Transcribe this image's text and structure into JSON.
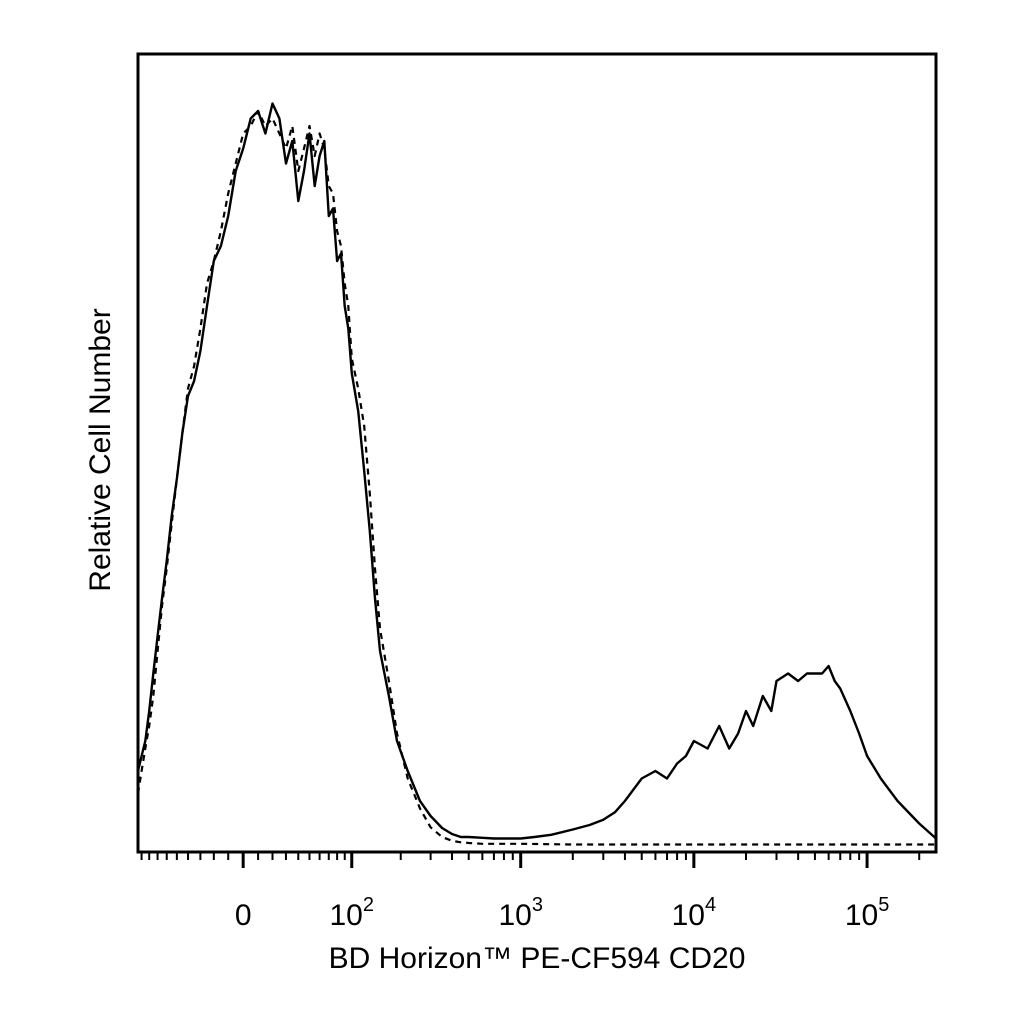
{
  "chart_data": {
    "type": "line",
    "title": "",
    "xlabel": "BD Horizon™ PE-CF594 CD20",
    "ylabel": "Relative Cell Number",
    "x_scale": "biexponential",
    "xlim": [
      -95,
      250000
    ],
    "ylim": [
      0,
      100
    ],
    "grid": false,
    "legend": "none",
    "x_ticks": [
      {
        "value": 0,
        "base": "0",
        "exp": ""
      },
      {
        "value": 100,
        "base": "10",
        "exp": "2"
      },
      {
        "value": 1000,
        "base": "10",
        "exp": "3"
      },
      {
        "value": 10000,
        "base": "10",
        "exp": "4"
      },
      {
        "value": 100000,
        "base": "10",
        "exp": "5"
      }
    ],
    "series": [
      {
        "name": "",
        "style": "solid",
        "x": [
          -95,
          -90,
          -85,
          -80,
          -75,
          -70,
          -65,
          -60,
          -55,
          -50,
          -45,
          -40,
          -35,
          -30,
          -25,
          -20,
          -15,
          -10,
          -5,
          0,
          5,
          10,
          15,
          20,
          25,
          30,
          35,
          40,
          45,
          50,
          55,
          60,
          65,
          70,
          75,
          80,
          85,
          90,
          95,
          100,
          110,
          120,
          130,
          140,
          150,
          170,
          190,
          220,
          260,
          300,
          350,
          400,
          450,
          500,
          600,
          700,
          800,
          900,
          1000,
          1200,
          1500,
          2000,
          2500,
          3000,
          3500,
          4000,
          5000,
          6000,
          7000,
          8000,
          9000,
          10000,
          12000,
          14000,
          16000,
          18000,
          20000,
          22000,
          25000,
          28000,
          30000,
          35000,
          40000,
          45000,
          50000,
          55000,
          60000,
          65000,
          70000,
          80000,
          90000,
          100000,
          120000,
          150000,
          200000,
          250000
        ],
        "y": [
          10,
          12,
          14,
          18,
          23,
          28,
          33,
          38,
          44,
          49,
          55,
          60,
          62,
          66,
          72,
          78,
          80,
          84,
          90,
          93,
          97,
          98,
          95,
          99,
          97,
          91,
          94,
          86,
          90,
          95,
          88,
          92,
          94,
          84,
          85,
          78,
          79,
          72,
          69,
          63,
          58,
          50,
          42,
          33,
          26,
          20,
          14,
          10,
          6,
          4,
          2.4,
          1.6,
          1.2,
          1.2,
          1.1,
          1.0,
          1.0,
          1.0,
          1.0,
          1.2,
          1.5,
          2.2,
          2.8,
          3.5,
          4.5,
          6,
          9,
          10,
          9,
          11,
          12,
          14,
          13,
          16,
          13,
          15,
          18,
          16,
          20,
          18,
          22,
          23,
          22,
          23,
          23,
          23,
          24,
          22,
          21,
          18,
          15,
          12,
          9,
          6,
          3,
          1
        ]
      },
      {
        "name": "",
        "style": "dashed",
        "x": [
          -95,
          -90,
          -85,
          -80,
          -75,
          -70,
          -65,
          -60,
          -55,
          -50,
          -45,
          -40,
          -35,
          -30,
          -25,
          -20,
          -15,
          -10,
          -5,
          0,
          5,
          10,
          15,
          20,
          25,
          30,
          35,
          40,
          45,
          50,
          55,
          60,
          65,
          70,
          75,
          80,
          85,
          90,
          95,
          100,
          110,
          120,
          130,
          140,
          150,
          170,
          190,
          220,
          260,
          300,
          350,
          400,
          450,
          500,
          600,
          700,
          800,
          1000,
          2000,
          5000,
          10000,
          50000,
          100000,
          250000
        ],
        "y": [
          7,
          10,
          13,
          16,
          20,
          26,
          32,
          37,
          43,
          49,
          55,
          61,
          64,
          69,
          75,
          78,
          82,
          87,
          91,
          95,
          96,
          98,
          96,
          97,
          95,
          93,
          96,
          90,
          93,
          96,
          92,
          95,
          93,
          88,
          87,
          82,
          80,
          75,
          72,
          65,
          61,
          56,
          47,
          37,
          29,
          22,
          15,
          9,
          5,
          2.5,
          1.2,
          0.7,
          0.5,
          0.4,
          0.3,
          0.3,
          0.3,
          0.3,
          0.2,
          0.2,
          0.2,
          0.2,
          0.2,
          0.2
        ]
      }
    ]
  }
}
